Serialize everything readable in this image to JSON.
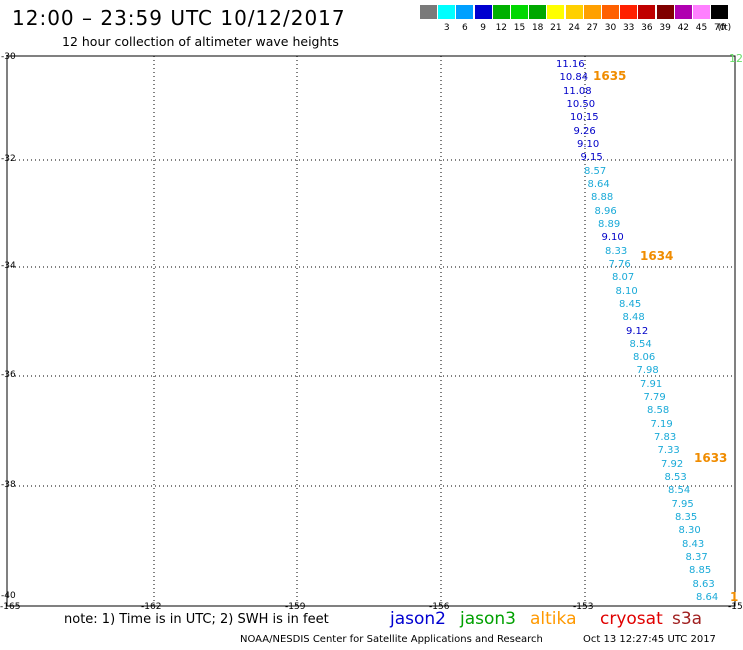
{
  "header": {
    "title": "12:00 – 23:59 UTC 10/12/2017",
    "subtitle": "12 hour collection of altimeter wave heights"
  },
  "legend": {
    "unit": "(ft)",
    "swatches": [
      {
        "label": "",
        "color": "#7a7a7a"
      },
      {
        "label": "3",
        "color": "#00ffff"
      },
      {
        "label": "6",
        "color": "#00a0ff"
      },
      {
        "label": "9",
        "color": "#0000d0"
      },
      {
        "label": "12",
        "color": "#00b000"
      },
      {
        "label": "15",
        "color": "#00d800"
      },
      {
        "label": "18",
        "color": "#00a800"
      },
      {
        "label": "21",
        "color": "#ffff00"
      },
      {
        "label": "24",
        "color": "#ffd000"
      },
      {
        "label": "27",
        "color": "#ffa000"
      },
      {
        "label": "30",
        "color": "#ff6000"
      },
      {
        "label": "33",
        "color": "#ff2000"
      },
      {
        "label": "36",
        "color": "#c00000"
      },
      {
        "label": "39",
        "color": "#800000"
      },
      {
        "label": "42",
        "color": "#b000b0"
      },
      {
        "label": "45",
        "color": "#ff80ff"
      },
      {
        "label": "70",
        "color": "#000000"
      }
    ]
  },
  "axes": {
    "lat_labels": [
      "-30",
      "-32",
      "-34",
      "-36",
      "-38",
      "-40"
    ],
    "lon_labels": [
      "-165",
      "-162",
      "-159",
      "-156",
      "-153",
      "-15"
    ]
  },
  "track": {
    "swh": [
      {
        "value": "11.16",
        "color": "#0000c8"
      },
      {
        "value": "10.84",
        "color": "#0000c8"
      },
      {
        "value": "11.08",
        "color": "#0000c8"
      },
      {
        "value": "10.50",
        "color": "#0000c8"
      },
      {
        "value": "10.15",
        "color": "#0000c8"
      },
      {
        "value": "9.26",
        "color": "#0000c8"
      },
      {
        "value": "9.10",
        "color": "#0000c8"
      },
      {
        "value": "9.15",
        "color": "#0000c8"
      },
      {
        "value": "8.57",
        "color": "#1aaad8"
      },
      {
        "value": "8.64",
        "color": "#1aaad8"
      },
      {
        "value": "8.88",
        "color": "#1aaad8"
      },
      {
        "value": "8.96",
        "color": "#1aaad8"
      },
      {
        "value": "8.89",
        "color": "#1aaad8"
      },
      {
        "value": "9.10",
        "color": "#0000c8"
      },
      {
        "value": "8.33",
        "color": "#1aaad8"
      },
      {
        "value": "7.76",
        "color": "#1aaad8"
      },
      {
        "value": "8.07",
        "color": "#1aaad8"
      },
      {
        "value": "8.10",
        "color": "#1aaad8"
      },
      {
        "value": "8.45",
        "color": "#1aaad8"
      },
      {
        "value": "8.48",
        "color": "#1aaad8"
      },
      {
        "value": "9.12",
        "color": "#0000c8"
      },
      {
        "value": "8.54",
        "color": "#1aaad8"
      },
      {
        "value": "8.06",
        "color": "#1aaad8"
      },
      {
        "value": "7.98",
        "color": "#1aaad8"
      },
      {
        "value": "7.91",
        "color": "#1aaad8"
      },
      {
        "value": "7.79",
        "color": "#1aaad8"
      },
      {
        "value": "8.58",
        "color": "#1aaad8"
      },
      {
        "value": "7.19",
        "color": "#1aaad8"
      },
      {
        "value": "7.83",
        "color": "#1aaad8"
      },
      {
        "value": "7.33",
        "color": "#1aaad8"
      },
      {
        "value": "7.92",
        "color": "#1aaad8"
      },
      {
        "value": "8.53",
        "color": "#1aaad8"
      },
      {
        "value": "8.54",
        "color": "#1aaad8"
      },
      {
        "value": "7.95",
        "color": "#1aaad8"
      },
      {
        "value": "8.35",
        "color": "#1aaad8"
      },
      {
        "value": "8.30",
        "color": "#1aaad8"
      },
      {
        "value": "8.43",
        "color": "#1aaad8"
      },
      {
        "value": "8.37",
        "color": "#1aaad8"
      },
      {
        "value": "8.85",
        "color": "#1aaad8"
      },
      {
        "value": "8.63",
        "color": "#1aaad8"
      },
      {
        "value": "8.64",
        "color": "#1aaad8"
      }
    ],
    "pass_times": [
      "1635",
      "1634",
      "1633",
      "1"
    ],
    "edge_label": "12"
  },
  "footer": {
    "note": "note: 1) Time is in UTC; 2) SWH is in feet",
    "satellites": [
      {
        "name": "jason2",
        "color": "#0000d0"
      },
      {
        "name": "jason3",
        "color": "#00a000"
      },
      {
        "name": "altika",
        "color": "#ff9900"
      },
      {
        "name": "cryosat",
        "color": "#e00000"
      },
      {
        "name": "s3a",
        "color": "#a02020"
      }
    ],
    "credit": "NOAA/NESDIS Center for Satellite Applications and Research",
    "timestamp": "Oct 13 12:27:45 UTC 2017"
  },
  "colors": {
    "pass_time": "#f08c00",
    "grid": "#000000"
  }
}
